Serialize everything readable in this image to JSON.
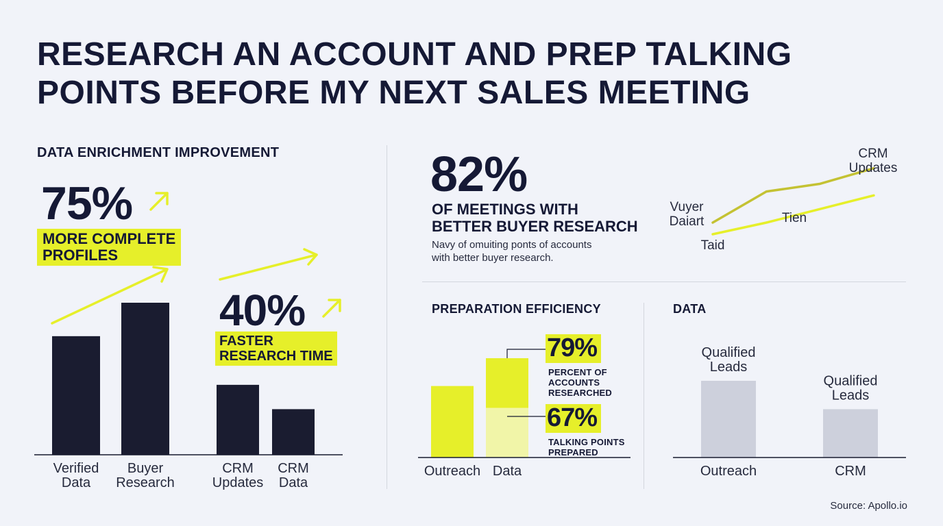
{
  "title": "RESEARCH AN ACCOUNT AND PREP TALKING POINTS BEFORE MY NEXT SALES MEETING",
  "colors": {
    "accent": "#e6ef2a",
    "dark": "#1a1c30",
    "gray": "#cdd0dc",
    "pale": "#f1f5a8"
  },
  "left": {
    "section_title": "DATA ENRICHMENT IMPROVEMENT",
    "stat1": {
      "value": "75%",
      "line1": "MORE COMPLETE",
      "line2": "PROFILES"
    },
    "stat2": {
      "value": "40%",
      "line1": "FASTER",
      "line2": "RESEARCH TIME"
    },
    "arrow_icon": "arrow-up-right-icon"
  },
  "top_right": {
    "stat": "82%",
    "heading_line1": "OF MEETINGS WITH",
    "heading_line2": "BETTER BUYER RESEARCH",
    "desc_line1": "Navy of omuiting ponts of accounts",
    "desc_line2": "with better buyer research."
  },
  "mid": {
    "section_title": "PREPARATION EFFICIENCY",
    "stat_a": {
      "value": "79%",
      "line1": "PERCENT OF",
      "line2": "ACCOUNTS",
      "line3": "RESEARCHED"
    },
    "stat_b": {
      "value": "67%",
      "line1": "TALKING POINTS",
      "line2": "PREPARED"
    }
  },
  "right": {
    "section_title": "DATA"
  },
  "source": "Source: Apollo.io",
  "chart_data": [
    {
      "type": "bar",
      "categories": [
        "Verified Data",
        "Buyer Research",
        "CRM Updates",
        "CRM Data"
      ],
      "category_lines": [
        [
          "Verified",
          "Data"
        ],
        [
          "Buyer",
          "Research"
        ],
        [
          "CRM",
          "Updates"
        ],
        [
          "CRM",
          "Data"
        ]
      ],
      "values": [
        78,
        100,
        46,
        30
      ],
      "ylim": [
        0,
        100
      ],
      "title": "DATA ENRICHMENT IMPROVEMENT",
      "color": "#1a1c30"
    },
    {
      "type": "line",
      "series": [
        {
          "name": "CRM Updates",
          "name_lines": [
            "CRM",
            "Updates"
          ],
          "x": [
            0,
            1,
            2,
            3
          ],
          "y": [
            58,
            74,
            78,
            86
          ],
          "color": "#c4c233"
        },
        {
          "name": "Tien",
          "name_lines": [
            "Tien"
          ],
          "x": [
            0,
            1,
            2,
            3
          ],
          "y": [
            52,
            58,
            65,
            72
          ],
          "color": "#e6ef2a"
        }
      ],
      "annotations": [
        [
          "Vuyer",
          "Daiart"
        ],
        [
          "Taid"
        ]
      ],
      "ylim": [
        40,
        100
      ]
    },
    {
      "type": "bar",
      "title": "PREPARATION EFFICIENCY",
      "categories": [
        "Outreach",
        "Data"
      ],
      "stacked": [
        {
          "label": "Outreach",
          "segments": [
            {
              "value": 72,
              "color": "#e6ef2a"
            }
          ]
        },
        {
          "label": "Data",
          "segments": [
            {
              "value": 50,
              "color": "#f1f5a8"
            },
            {
              "value": 50,
              "color": "#e6ef2a"
            }
          ]
        }
      ],
      "ylim": [
        0,
        100
      ]
    },
    {
      "type": "bar",
      "title": "DATA",
      "categories": [
        "Outreach",
        "CRM"
      ],
      "bar_labels": [
        [
          "Qualified",
          "Leads"
        ],
        [
          "Qualified",
          "Leads"
        ]
      ],
      "values": [
        100,
        63
      ],
      "ylim": [
        0,
        100
      ],
      "color": "#cdd0dc"
    }
  ]
}
